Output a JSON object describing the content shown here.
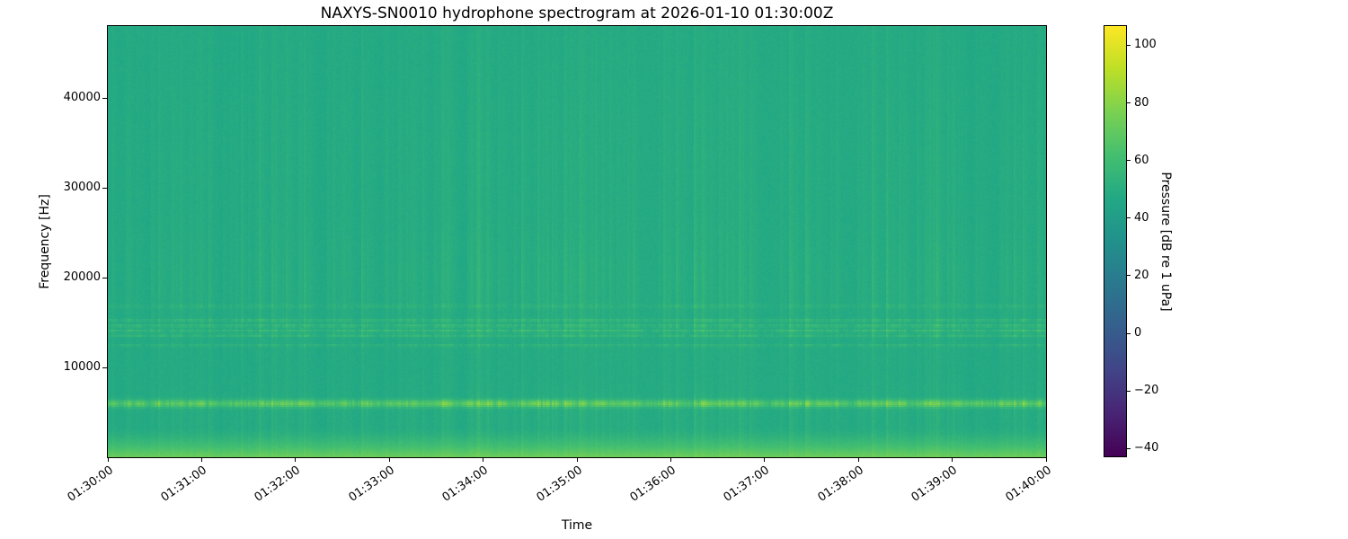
{
  "chart_data": {
    "type": "heatmap",
    "subtype": "spectrogram",
    "title": "NAXYS-SN0010 hydrophone spectrogram at 2026-01-10 01:30:00Z",
    "xlabel": "Time",
    "ylabel": "Frequency [Hz]",
    "x_ticks": [
      "01:30:00",
      "01:31:00",
      "01:32:00",
      "01:33:00",
      "01:34:00",
      "01:35:00",
      "01:36:00",
      "01:37:00",
      "01:38:00",
      "01:39:00",
      "01:40:00"
    ],
    "x_range_seconds": [
      0,
      600
    ],
    "ylim_hz": [
      0,
      48000
    ],
    "y_ticks": [
      {
        "value": 10000,
        "label": "10000"
      },
      {
        "value": 20000,
        "label": "20000"
      },
      {
        "value": 30000,
        "label": "30000"
      },
      {
        "value": 40000,
        "label": "40000"
      }
    ],
    "grid": false,
    "colorbar": {
      "label": "Pressure [dB re 1 uPa]",
      "position": "right",
      "vmin": -43,
      "vmax": 107,
      "ticks": [
        {
          "value": 100,
          "label": "100"
        },
        {
          "value": 80,
          "label": "80"
        },
        {
          "value": 60,
          "label": "60"
        },
        {
          "value": 40,
          "label": "40"
        },
        {
          "value": 20,
          "label": "20"
        },
        {
          "value": 0,
          "label": "0"
        },
        {
          "value": -20,
          "label": "−20"
        },
        {
          "value": -40,
          "label": "−40"
        }
      ],
      "colormap": "viridis",
      "stops": [
        [
          0.0,
          "#440154"
        ],
        [
          0.1,
          "#482475"
        ],
        [
          0.2,
          "#414487"
        ],
        [
          0.3,
          "#355f8d"
        ],
        [
          0.4,
          "#2a788e"
        ],
        [
          0.5,
          "#21918c"
        ],
        [
          0.6,
          "#22a884"
        ],
        [
          0.7,
          "#44bf70"
        ],
        [
          0.8,
          "#7ad151"
        ],
        [
          0.9,
          "#bddf26"
        ],
        [
          1.0,
          "#fde725"
        ]
      ]
    },
    "features": [
      "Uniform teal noise floor around 45-55 dB across 0-48 kHz",
      "Bright speckled tonal band near 5.5-6.3 kHz reaching ~85-95 dB",
      "Cluster of intermittent speckled bands between ~13.3 and 15.5 kHz",
      "Faint narrow band near 12.4 kHz and very faint band near 16.8 kHz",
      "Broadband vertical transient striations throughout, strongest 14-25 kHz",
      "Elevated low-frequency energy below ~3 kHz rising to ~70 dB near 0 Hz"
    ],
    "synthesis": {
      "seed": 1337,
      "grid_cols": 522,
      "grid_rows": 240,
      "base_level_db": 47.5,
      "cell_noise_db": 2.0,
      "low_freq": {
        "cutoff_hz": 3400,
        "gain_db": 24,
        "exp": 1.6
      },
      "striation": {
        "spike_prob_base": 0.05,
        "spike_prob_cluster": 0.28,
        "cluster_rate": 0.04,
        "decay": 0.62,
        "gain_db": 5.5,
        "col_offset_db": 1.2,
        "w_floor": 0.45,
        "weights": [
          {
            "center_hz": 19500,
            "sigma_hz": 6000,
            "w": 0.75
          },
          {
            "center_hz": 4500,
            "sigma_hz": 2800,
            "w": 0.55
          },
          {
            "center_hz": 33000,
            "sigma_hz": 9000,
            "w": 0.35
          }
        ]
      },
      "bands": [
        {
          "center_hz": 5900,
          "half_width_hz": 420,
          "base_db": 10,
          "burst_db": 9,
          "speckle_db": 14,
          "persist": 0.5
        },
        {
          "center_hz": 12400,
          "half_width_hz": 160,
          "base_db": 1,
          "burst_db": 3,
          "speckle_db": 5,
          "persist": 0.4
        },
        {
          "center_hz": 13500,
          "half_width_hz": 170,
          "base_db": 1.5,
          "burst_db": 4,
          "speckle_db": 7,
          "persist": 0.45
        },
        {
          "center_hz": 14050,
          "half_width_hz": 170,
          "base_db": 2,
          "burst_db": 5,
          "speckle_db": 8,
          "persist": 0.45
        },
        {
          "center_hz": 14600,
          "half_width_hz": 170,
          "base_db": 2,
          "burst_db": 5,
          "speckle_db": 8,
          "persist": 0.45
        },
        {
          "center_hz": 15200,
          "half_width_hz": 170,
          "base_db": 1.5,
          "burst_db": 4,
          "speckle_db": 7,
          "persist": 0.45
        },
        {
          "center_hz": 16800,
          "half_width_hz": 220,
          "base_db": 0.6,
          "burst_db": 2,
          "speckle_db": 4,
          "persist": 0.4
        }
      ]
    }
  }
}
